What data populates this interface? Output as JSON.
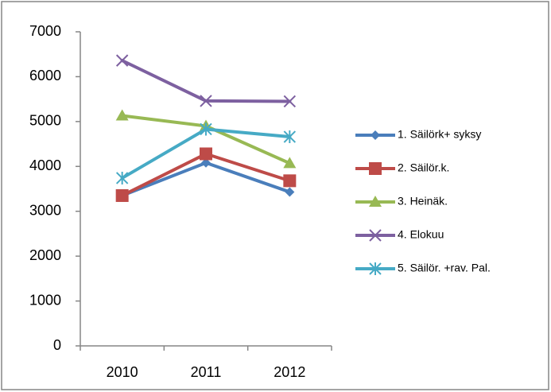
{
  "chart_data": {
    "type": "line",
    "categories": [
      "2010",
      "2011",
      "2012"
    ],
    "series": [
      {
        "name": "1. Säilörk+ syksy",
        "color": "#4a7ebb",
        "marker": "diamond",
        "values": [
          3350,
          4080,
          3430
        ]
      },
      {
        "name": "2. Säilör.k.",
        "color": "#be4b48",
        "marker": "square",
        "values": [
          3350,
          4280,
          3680
        ]
      },
      {
        "name": "3. Heinäk.",
        "color": "#98b954",
        "marker": "triangle",
        "values": [
          5130,
          4900,
          4070
        ]
      },
      {
        "name": "4. Elokuu",
        "color": "#7d60a0",
        "marker": "x",
        "values": [
          6360,
          5460,
          5450
        ]
      },
      {
        "name": "5. Säilör. +rav. Pal.",
        "color": "#46aac5",
        "marker": "star",
        "values": [
          3740,
          4830,
          4660
        ]
      }
    ],
    "ylim": [
      0,
      7000
    ],
    "yticks": [
      0,
      1000,
      2000,
      3000,
      4000,
      5000,
      6000,
      7000
    ],
    "grid": false,
    "legend": "right"
  }
}
